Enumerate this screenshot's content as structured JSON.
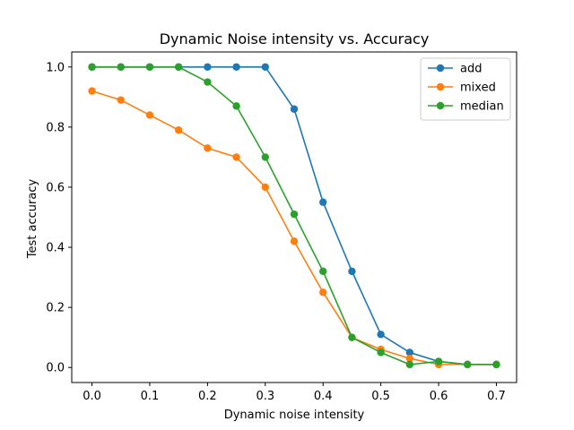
{
  "chart_data": {
    "type": "line",
    "title": "Dynamic Noise intensity vs. Accuracy",
    "xlabel": "Dynamic noise intensity",
    "ylabel": "Test accuracy",
    "xlim": [
      -0.035,
      0.735
    ],
    "ylim": [
      -0.05,
      1.05
    ],
    "xticks": [
      0.0,
      0.1,
      0.2,
      0.3,
      0.4,
      0.5,
      0.6,
      0.7
    ],
    "xtick_labels": [
      "0.0",
      "0.1",
      "0.2",
      "0.3",
      "0.4",
      "0.5",
      "0.6",
      "0.7"
    ],
    "yticks": [
      0.0,
      0.2,
      0.4,
      0.6,
      0.8,
      1.0
    ],
    "ytick_labels": [
      "0.0",
      "0.2",
      "0.4",
      "0.6",
      "0.8",
      "1.0"
    ],
    "grid": false,
    "legend_position": "upper right",
    "x": [
      0.0,
      0.05,
      0.1,
      0.15,
      0.2,
      0.25,
      0.3,
      0.35,
      0.4,
      0.45,
      0.5,
      0.55,
      0.6,
      0.65,
      0.7
    ],
    "series": [
      {
        "name": "add",
        "color": "#1f77b4",
        "values": [
          1.0,
          1.0,
          1.0,
          1.0,
          1.0,
          1.0,
          1.0,
          0.86,
          0.55,
          0.32,
          0.11,
          0.05,
          0.02,
          0.01,
          0.01
        ]
      },
      {
        "name": "mixed",
        "color": "#ff7f0e",
        "values": [
          0.92,
          0.89,
          0.84,
          0.79,
          0.73,
          0.7,
          0.6,
          0.42,
          0.25,
          0.1,
          0.06,
          0.03,
          0.01,
          0.01,
          0.01
        ]
      },
      {
        "name": "median",
        "color": "#2ca02c",
        "values": [
          1.0,
          1.0,
          1.0,
          1.0,
          0.95,
          0.87,
          0.7,
          0.51,
          0.32,
          0.1,
          0.05,
          0.01,
          0.02,
          0.01,
          0.01
        ]
      }
    ]
  }
}
